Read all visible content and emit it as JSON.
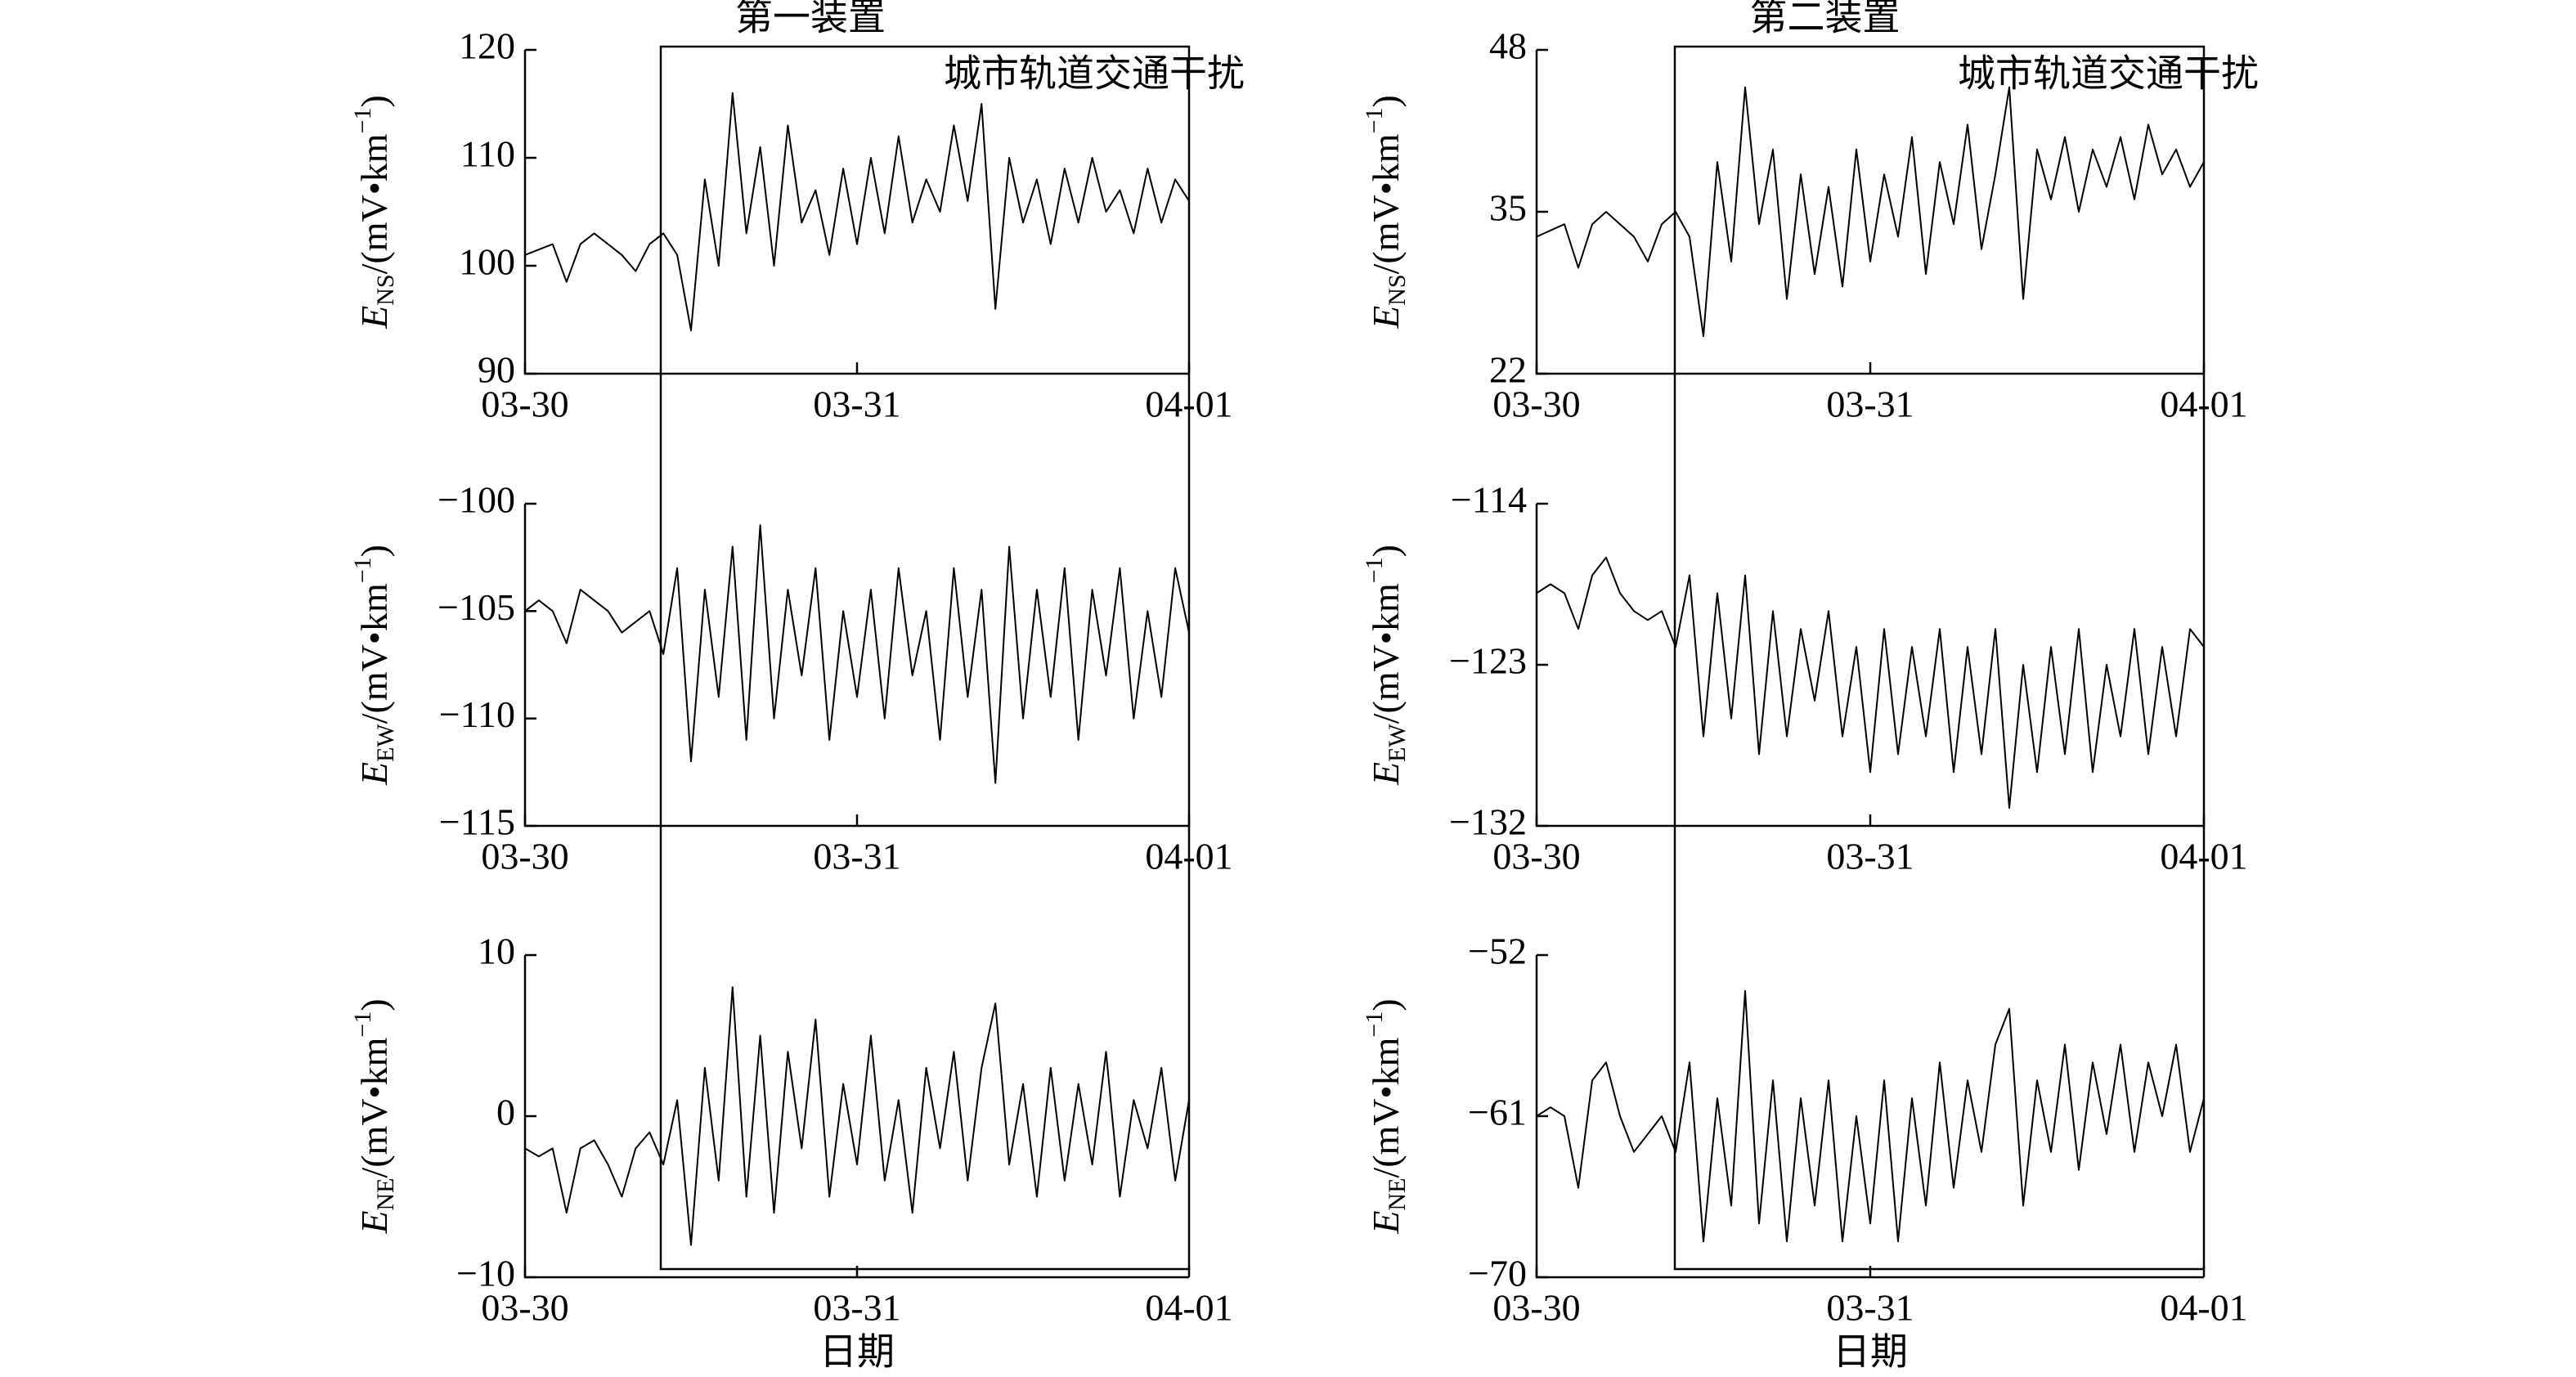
{
  "chart_data": [
    {
      "type": "line",
      "title": "第一装置",
      "annotation": "城市轨道交通干扰",
      "categories": [
        "03-30",
        null,
        null,
        null,
        null,
        null,
        null,
        null,
        null,
        null,
        null,
        null,
        null,
        null,
        null,
        null,
        null,
        null,
        null,
        null,
        null,
        null,
        null,
        null,
        "03-31",
        null,
        null,
        null,
        null,
        null,
        null,
        null,
        null,
        null,
        null,
        null,
        null,
        null,
        null,
        null,
        null,
        null,
        null,
        null,
        null,
        null,
        null,
        null,
        "04-01"
      ],
      "series": [
        {
          "color": "#000000",
          "values": [
            101,
            101.5,
            102,
            98.5,
            102,
            103,
            102,
            101,
            99.5,
            102,
            103,
            101,
            94,
            108,
            100,
            116,
            103,
            111,
            100,
            113,
            104,
            107,
            101,
            109,
            102,
            110,
            103,
            112,
            104,
            108,
            105,
            113,
            106,
            115,
            96,
            110,
            104,
            108,
            102,
            109,
            104,
            110,
            105,
            107,
            103,
            109,
            104,
            108,
            106
          ]
        }
      ],
      "ylim": [
        90,
        120
      ],
      "yticks": [
        90,
        100,
        110,
        120
      ],
      "ylabel": {
        "symbol": "E",
        "subscript": "NS",
        "unit": "/(mV•km",
        "exponent": "−1",
        "close": ")"
      }
    },
    {
      "type": "line",
      "categories": [
        "03-30",
        null,
        null,
        null,
        null,
        null,
        null,
        null,
        null,
        null,
        null,
        null,
        null,
        null,
        null,
        null,
        null,
        null,
        null,
        null,
        null,
        null,
        null,
        null,
        "03-31",
        null,
        null,
        null,
        null,
        null,
        null,
        null,
        null,
        null,
        null,
        null,
        null,
        null,
        null,
        null,
        null,
        null,
        null,
        null,
        null,
        null,
        null,
        null,
        "04-01"
      ],
      "series": [
        {
          "color": "#000000",
          "values": [
            -105,
            -104.5,
            -105,
            -106.5,
            -104,
            -104.5,
            -105,
            -106,
            -105.5,
            -105,
            -107,
            -103,
            -112,
            -104,
            -109,
            -102,
            -111,
            -101,
            -110,
            -104,
            -108,
            -103,
            -111,
            -105,
            -109,
            -104,
            -110,
            -103,
            -108,
            -105,
            -111,
            -103,
            -109,
            -104,
            -113,
            -102,
            -110,
            -104,
            -109,
            -103,
            -111,
            -104,
            -108,
            -103,
            -110,
            -105,
            -109,
            -103,
            -106
          ]
        }
      ],
      "ylim": [
        -115,
        -100
      ],
      "yticks": [
        {
          "value": -115,
          "label": "−115"
        },
        {
          "value": -110,
          "label": "−110"
        },
        {
          "value": -105,
          "label": "−105"
        },
        {
          "value": -100,
          "label": "−100"
        }
      ],
      "ylabel": {
        "symbol": "E",
        "subscript": "EW",
        "unit": "/(mV•km",
        "exponent": "−1",
        "close": ")"
      }
    },
    {
      "type": "line",
      "xlabel": "日期",
      "categories": [
        "03-30",
        null,
        null,
        null,
        null,
        null,
        null,
        null,
        null,
        null,
        null,
        null,
        null,
        null,
        null,
        null,
        null,
        null,
        null,
        null,
        null,
        null,
        null,
        null,
        "03-31",
        null,
        null,
        null,
        null,
        null,
        null,
        null,
        null,
        null,
        null,
        null,
        null,
        null,
        null,
        null,
        null,
        null,
        null,
        null,
        null,
        null,
        null,
        null,
        "04-01"
      ],
      "series": [
        {
          "color": "#000000",
          "values": [
            -2,
            -2.5,
            -2,
            -6,
            -2,
            -1.5,
            -3,
            -5,
            -2,
            -1,
            -3,
            1,
            -8,
            3,
            -4,
            8,
            -5,
            5,
            -6,
            4,
            -2,
            6,
            -5,
            2,
            -3,
            5,
            -4,
            1,
            -6,
            3,
            -2,
            4,
            -4,
            3,
            7,
            -3,
            2,
            -5,
            3,
            -4,
            2,
            -3,
            4,
            -5,
            1,
            -2,
            3,
            -4,
            1
          ]
        }
      ],
      "ylim": [
        -10,
        10
      ],
      "yticks": [
        {
          "value": -10,
          "label": "−10"
        },
        0,
        10
      ],
      "ylabel": {
        "symbol": "E",
        "subscript": "NE",
        "unit": "/(mV•km",
        "exponent": "−1",
        "close": ")"
      }
    },
    {
      "type": "line",
      "title": "第二装置",
      "annotation": "城市轨道交通干扰",
      "categories": [
        "03-30",
        null,
        null,
        null,
        null,
        null,
        null,
        null,
        null,
        null,
        null,
        null,
        null,
        null,
        null,
        null,
        null,
        null,
        null,
        null,
        null,
        null,
        null,
        null,
        "03-31",
        null,
        null,
        null,
        null,
        null,
        null,
        null,
        null,
        null,
        null,
        null,
        null,
        null,
        null,
        null,
        null,
        null,
        null,
        null,
        null,
        null,
        null,
        null,
        "04-01"
      ],
      "series": [
        {
          "color": "#000000",
          "values": [
            33,
            33.5,
            34,
            30.5,
            34,
            35,
            34,
            33,
            31,
            34,
            35,
            33,
            25,
            39,
            31,
            45,
            34,
            40,
            28,
            38,
            30,
            37,
            29,
            40,
            31,
            38,
            33,
            41,
            30,
            39,
            34,
            42,
            32,
            38,
            45,
            28,
            40,
            36,
            41,
            35,
            40,
            37,
            41,
            36,
            42,
            38,
            40,
            37,
            39
          ]
        }
      ],
      "ylim": [
        22,
        48
      ],
      "yticks": [
        22,
        35,
        48
      ],
      "ylabel": {
        "symbol": "E",
        "subscript": "NS",
        "unit": "/(mV•km",
        "exponent": "−1",
        "close": ")"
      }
    },
    {
      "type": "line",
      "categories": [
        "03-30",
        null,
        null,
        null,
        null,
        null,
        null,
        null,
        null,
        null,
        null,
        null,
        null,
        null,
        null,
        null,
        null,
        null,
        null,
        null,
        null,
        null,
        null,
        null,
        "03-31",
        null,
        null,
        null,
        null,
        null,
        null,
        null,
        null,
        null,
        null,
        null,
        null,
        null,
        null,
        null,
        null,
        null,
        null,
        null,
        null,
        null,
        null,
        null,
        "04-01"
      ],
      "series": [
        {
          "color": "#000000",
          "values": [
            -119,
            -118.5,
            -119,
            -121,
            -118,
            -117,
            -119,
            -120,
            -120.5,
            -120,
            -122,
            -118,
            -127,
            -119,
            -126,
            -118,
            -128,
            -120,
            -127,
            -121,
            -125,
            -120,
            -127,
            -122,
            -129,
            -121,
            -128,
            -122,
            -127,
            -121,
            -129,
            -122,
            -128,
            -121,
            -131,
            -123,
            -129,
            -122,
            -128,
            -121,
            -129,
            -123,
            -127,
            -121,
            -128,
            -122,
            -127,
            -121,
            -122
          ]
        }
      ],
      "ylim": [
        -132,
        -114
      ],
      "yticks": [
        {
          "value": -132,
          "label": "−132"
        },
        {
          "value": -123,
          "label": "−123"
        },
        {
          "value": -114,
          "label": "−114"
        }
      ],
      "ylabel": {
        "symbol": "E",
        "subscript": "EW",
        "unit": "/(mV•km",
        "exponent": "−1",
        "close": ")"
      }
    },
    {
      "type": "line",
      "xlabel": "日期",
      "categories": [
        "03-30",
        null,
        null,
        null,
        null,
        null,
        null,
        null,
        null,
        null,
        null,
        null,
        null,
        null,
        null,
        null,
        null,
        null,
        null,
        null,
        null,
        null,
        null,
        null,
        "03-31",
        null,
        null,
        null,
        null,
        null,
        null,
        null,
        null,
        null,
        null,
        null,
        null,
        null,
        null,
        null,
        null,
        null,
        null,
        null,
        null,
        null,
        null,
        null,
        "04-01"
      ],
      "series": [
        {
          "color": "#000000",
          "values": [
            -61,
            -60.5,
            -61,
            -65,
            -59,
            -58,
            -61,
            -63,
            -62,
            -61,
            -63,
            -58,
            -68,
            -60,
            -66,
            -54,
            -67,
            -59,
            -68,
            -60,
            -66,
            -59,
            -68,
            -61,
            -67,
            -59,
            -68,
            -60,
            -66,
            -58,
            -65,
            -59,
            -63,
            -57,
            -55,
            -66,
            -59,
            -63,
            -57,
            -64,
            -58,
            -62,
            -57,
            -63,
            -58,
            -61,
            -57,
            -63,
            -60
          ]
        }
      ],
      "ylim": [
        -70,
        -52
      ],
      "yticks": [
        {
          "value": -70,
          "label": "−70"
        },
        {
          "value": -61,
          "label": "−61"
        },
        {
          "value": -52,
          "label": "−52"
        }
      ],
      "ylabel": {
        "symbol": "E",
        "subscript": "NE",
        "unit": "/(mV•km",
        "exponent": "−1",
        "close": ")"
      }
    }
  ]
}
